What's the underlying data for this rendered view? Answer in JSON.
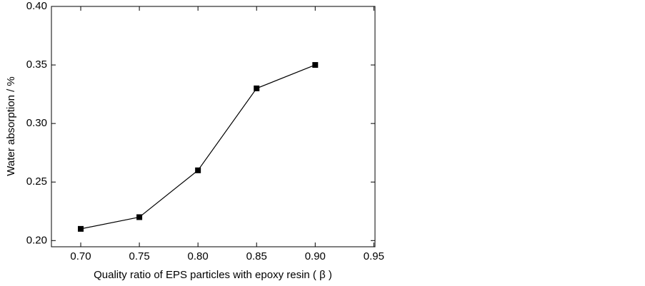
{
  "chart_data": {
    "type": "line",
    "xlabel": "Quality ratio of EPS particles with epoxy resin ( β )",
    "ylabel": "Water absorption / %",
    "x": [
      0.7,
      0.75,
      0.8,
      0.85,
      0.9
    ],
    "series": [
      {
        "color": "#000000",
        "values": [
          0.21,
          0.22,
          0.26,
          0.33,
          0.35
        ]
      }
    ],
    "xlim": [
      0.675,
      0.951
    ],
    "ylim": [
      0.1947,
      0.4
    ],
    "xticks": [
      {
        "value": 0.7,
        "label": "0.70"
      },
      0.75,
      {
        "value": 0.8,
        "label": "0.80"
      },
      0.85,
      {
        "value": 0.9,
        "label": "0.90"
      },
      0.95
    ],
    "yticks": [
      {
        "value": 0.2,
        "label": "0.20"
      },
      0.25,
      {
        "value": 0.3,
        "label": "0.30"
      },
      0.35,
      {
        "value": 0.4,
        "label": "0.40"
      }
    ],
    "grid": false
  }
}
